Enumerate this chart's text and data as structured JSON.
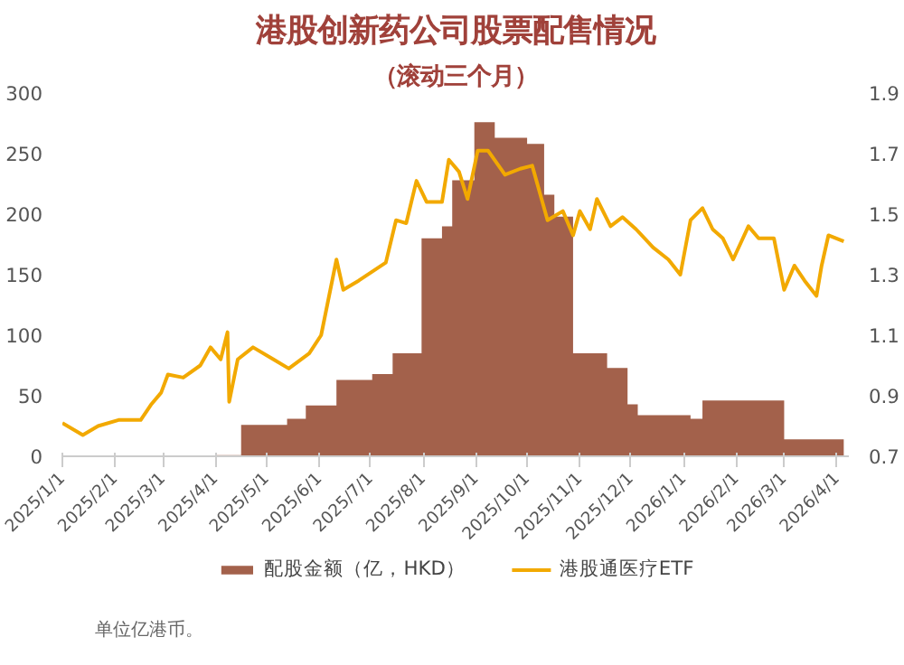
{
  "chart_data": {
    "type": "area",
    "title": "港股创新药公司股票配售情况",
    "subtitle": "（滚动三个月）",
    "annotations": [
      "单位亿港币。"
    ],
    "xlim": [
      "2025-01-01",
      "2026-04-08"
    ],
    "xticks": [
      {
        "value": "2025-01-01",
        "label": "2025/1/1"
      },
      {
        "value": "2025-02-01",
        "label": "2025/2/1"
      },
      {
        "value": "2025-03-01",
        "label": "2025/3/1"
      },
      {
        "value": "2025-04-01",
        "label": "2025/4/1"
      },
      {
        "value": "2025-05-01",
        "label": "2025/5/1"
      },
      {
        "value": "2025-06-01",
        "label": "2025/6/1"
      },
      {
        "value": "2025-07-01",
        "label": "2025/7/1"
      },
      {
        "value": "2025-08-01",
        "label": "2025/8/1"
      },
      {
        "value": "2025-09-01",
        "label": "2025/9/1"
      },
      {
        "value": "2025-10-01",
        "label": "2025/10/1"
      },
      {
        "value": "2025-11-01",
        "label": "2025/11/1"
      },
      {
        "value": "2025-12-01",
        "label": "2025/12/1"
      },
      {
        "value": "2026-01-01",
        "label": "2026/1/1"
      },
      {
        "value": "2026-02-01",
        "label": "2026/2/1"
      },
      {
        "value": "2026-03-01",
        "label": "2026/3/1"
      },
      {
        "value": "2026-04-01",
        "label": "2026/4/1"
      }
    ],
    "ylim": [
      0,
      300
    ],
    "yticks": [
      0,
      50,
      100,
      150,
      200,
      250,
      300
    ],
    "y2lim": [
      0.7,
      1.9
    ],
    "y2ticks": [
      0.7,
      0.9,
      1.1,
      1.3,
      1.5,
      1.7,
      1.9
    ],
    "legend": "bottom",
    "grid": false,
    "series": [
      {
        "name": "配股金额（亿，HKD）",
        "type": "area",
        "color": "#a3614b",
        "x": [
          "2025-04-01",
          "2025-04-16",
          "2025-05-13",
          "2025-05-24",
          "2025-06-11",
          "2025-07-02",
          "2025-07-14",
          "2025-07-31",
          "2025-08-12",
          "2025-08-18",
          "2025-08-31",
          "2025-09-12",
          "2025-10-01",
          "2025-10-11",
          "2025-10-17",
          "2025-10-28",
          "2025-11-17",
          "2025-11-29",
          "2025-12-05",
          "2026-01-05",
          "2026-01-12",
          "2026-03-01",
          "2026-04-05"
        ],
        "values": [
          1,
          26,
          31,
          42,
          63,
          68,
          85,
          180,
          190,
          228,
          276,
          263,
          258,
          216,
          198,
          85,
          73,
          43,
          34,
          31,
          46,
          14,
          14
        ]
      },
      {
        "name": "港股通医疗ETF",
        "type": "line",
        "axis": "y2",
        "color": "#f2a900",
        "x": [
          "2025-01-01",
          "2025-01-13",
          "2025-01-22",
          "2025-02-03",
          "2025-02-16",
          "2025-02-22",
          "2025-02-28",
          "2025-03-04",
          "2025-03-13",
          "2025-03-23",
          "2025-03-29",
          "2025-04-04",
          "2025-04-08",
          "2025-04-09",
          "2025-04-14",
          "2025-04-23",
          "2025-05-05",
          "2025-05-14",
          "2025-05-26",
          "2025-06-02",
          "2025-06-11",
          "2025-06-15",
          "2025-06-24",
          "2025-07-02",
          "2025-07-10",
          "2025-07-16",
          "2025-07-22",
          "2025-07-28",
          "2025-08-03",
          "2025-08-12",
          "2025-08-16",
          "2025-08-22",
          "2025-08-27",
          "2025-09-02",
          "2025-09-08",
          "2025-09-18",
          "2025-09-27",
          "2025-10-04",
          "2025-10-13",
          "2025-10-22",
          "2025-10-28",
          "2025-11-01",
          "2025-11-07",
          "2025-11-11",
          "2025-11-19",
          "2025-11-26",
          "2025-12-04",
          "2025-12-14",
          "2025-12-23",
          "2025-12-30",
          "2026-01-05",
          "2026-01-12",
          "2026-01-18",
          "2026-01-24",
          "2026-01-30",
          "2026-02-08",
          "2026-02-14",
          "2026-02-23",
          "2026-03-01",
          "2026-03-07",
          "2026-03-13",
          "2026-03-20",
          "2026-03-23",
          "2026-03-27",
          "2026-04-05"
        ],
        "values": [
          0.81,
          0.77,
          0.8,
          0.82,
          0.82,
          0.87,
          0.91,
          0.97,
          0.96,
          1.0,
          1.06,
          1.02,
          1.11,
          0.88,
          1.02,
          1.06,
          1.02,
          0.99,
          1.04,
          1.1,
          1.35,
          1.25,
          1.28,
          1.31,
          1.34,
          1.48,
          1.47,
          1.61,
          1.54,
          1.54,
          1.68,
          1.64,
          1.55,
          1.71,
          1.71,
          1.63,
          1.65,
          1.66,
          1.48,
          1.51,
          1.43,
          1.51,
          1.45,
          1.55,
          1.46,
          1.49,
          1.45,
          1.39,
          1.35,
          1.3,
          1.48,
          1.52,
          1.45,
          1.42,
          1.35,
          1.46,
          1.42,
          1.42,
          1.25,
          1.33,
          1.28,
          1.23,
          1.33,
          1.43,
          1.41
        ]
      }
    ]
  }
}
